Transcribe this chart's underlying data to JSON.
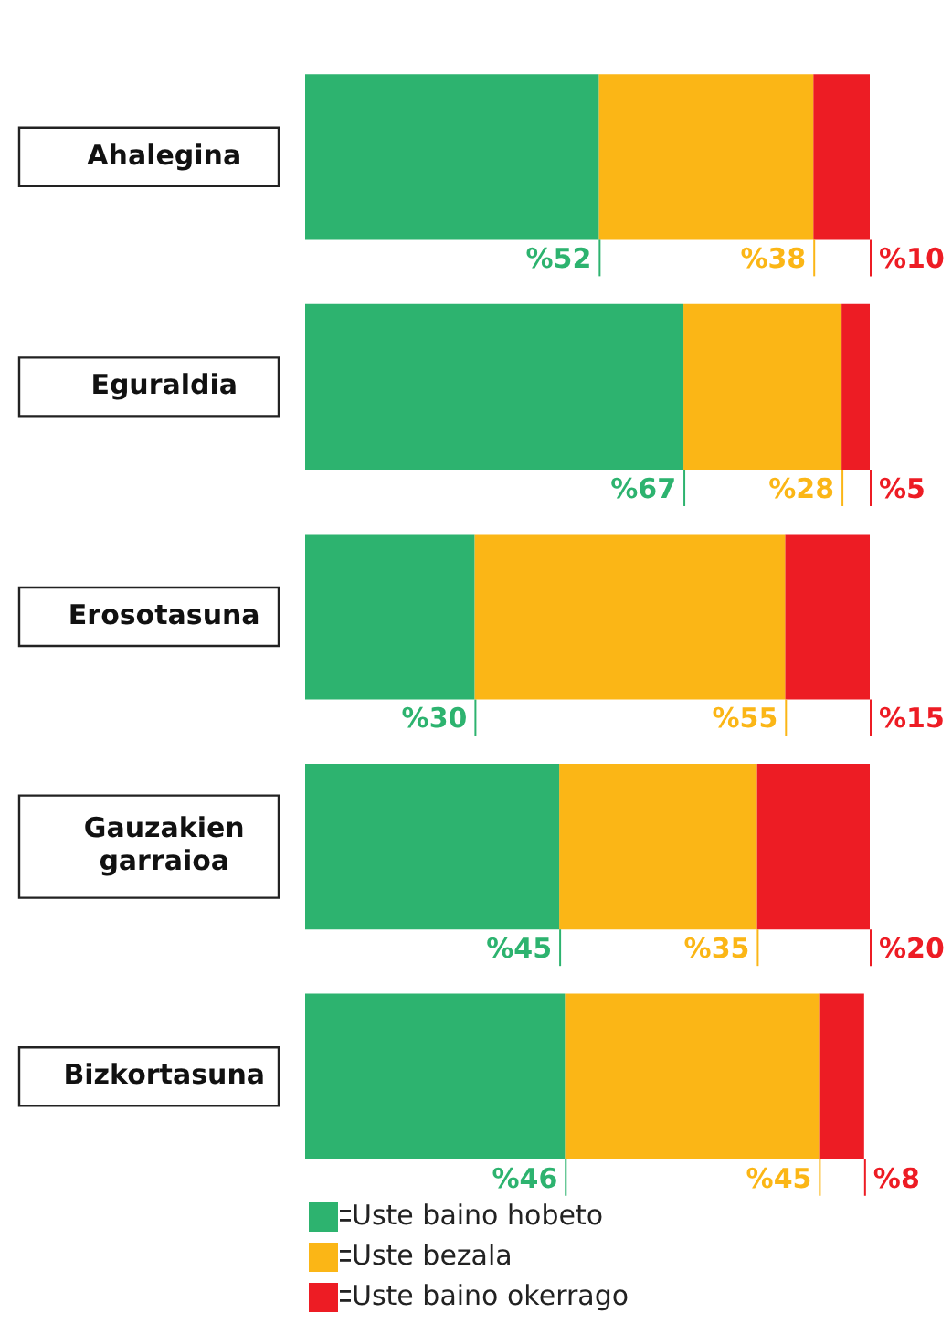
{
  "chart_data": {
    "type": "bar",
    "orientation": "horizontal",
    "stacked": true,
    "legend": "bottom left",
    "categories": [
      "Ahalegina",
      "Eguraldia",
      "Erosotasuna",
      "Gauzakien garraioa",
      "Bizkortasuna"
    ],
    "series": [
      {
        "name": "Uste baino hobeto",
        "color": "#2db36f",
        "values": [
          52,
          67,
          30,
          45,
          46
        ],
        "value_labels": [
          "%52",
          "%67",
          "%30",
          "%45",
          "%46"
        ]
      },
      {
        "name": "Uste bezala",
        "color": "#fbb616",
        "values": [
          38,
          28,
          55,
          35,
          45
        ],
        "value_labels": [
          "%38",
          "%28",
          "%55",
          "%35",
          "%45"
        ]
      },
      {
        "name": "Uste baino okerrago",
        "color": "#ed1c24",
        "values": [
          10,
          5,
          15,
          20,
          8
        ],
        "value_labels": [
          "%10",
          "%5",
          "%15",
          "%20",
          "%8"
        ]
      }
    ]
  }
}
